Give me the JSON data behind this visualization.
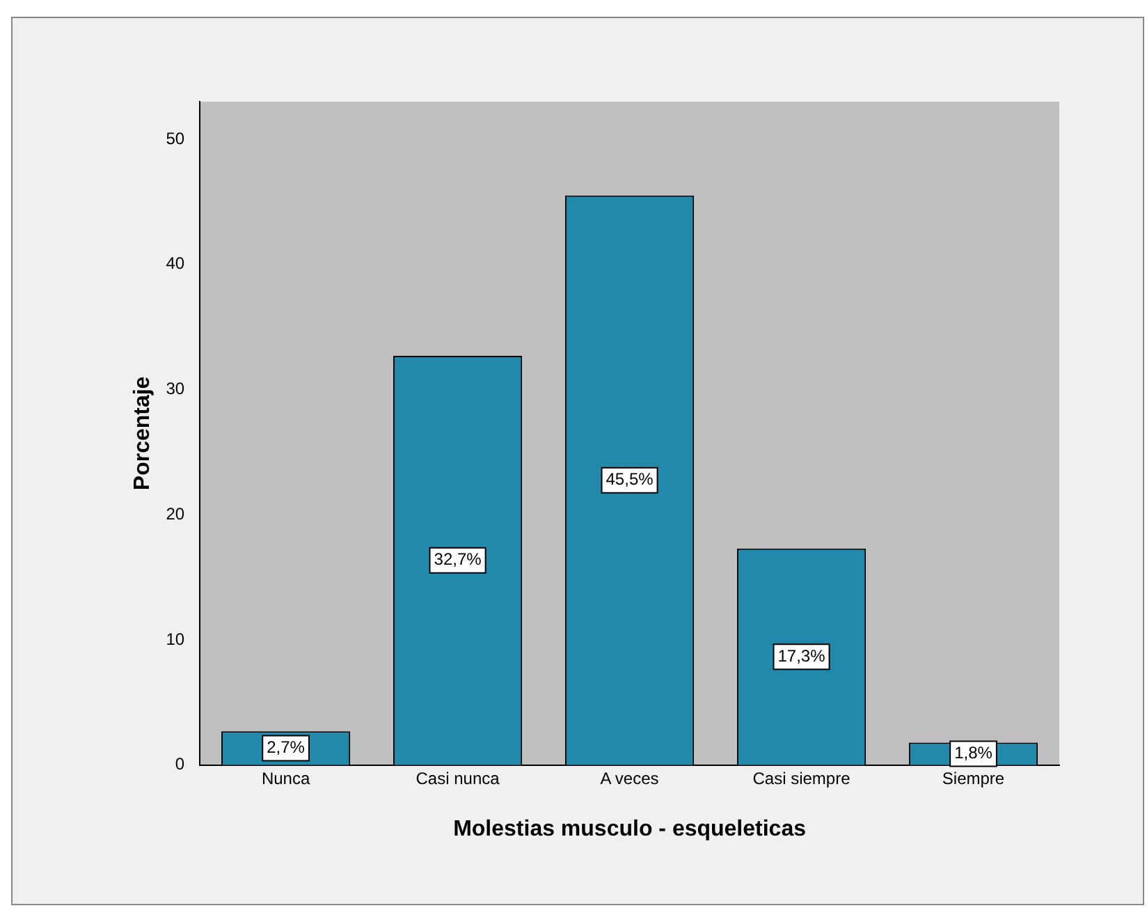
{
  "chart_data": {
    "type": "bar",
    "xlabel": "Molestias musculo - esqueleticas",
    "ylabel": "Porcentaje",
    "categories": [
      "Nunca",
      "Casi nunca",
      "A veces",
      "Casi siempre",
      "Siempre"
    ],
    "values": [
      2.7,
      32.7,
      45.5,
      17.3,
      1.8
    ],
    "value_labels": [
      "2,7%",
      "32,7%",
      "45,5%",
      "17,3%",
      "1,8%"
    ],
    "color": "#2389ab",
    "ylim": [
      0,
      53
    ],
    "yticks": [
      0,
      10,
      20,
      30,
      40,
      50
    ],
    "grid": false,
    "legend": false
  }
}
